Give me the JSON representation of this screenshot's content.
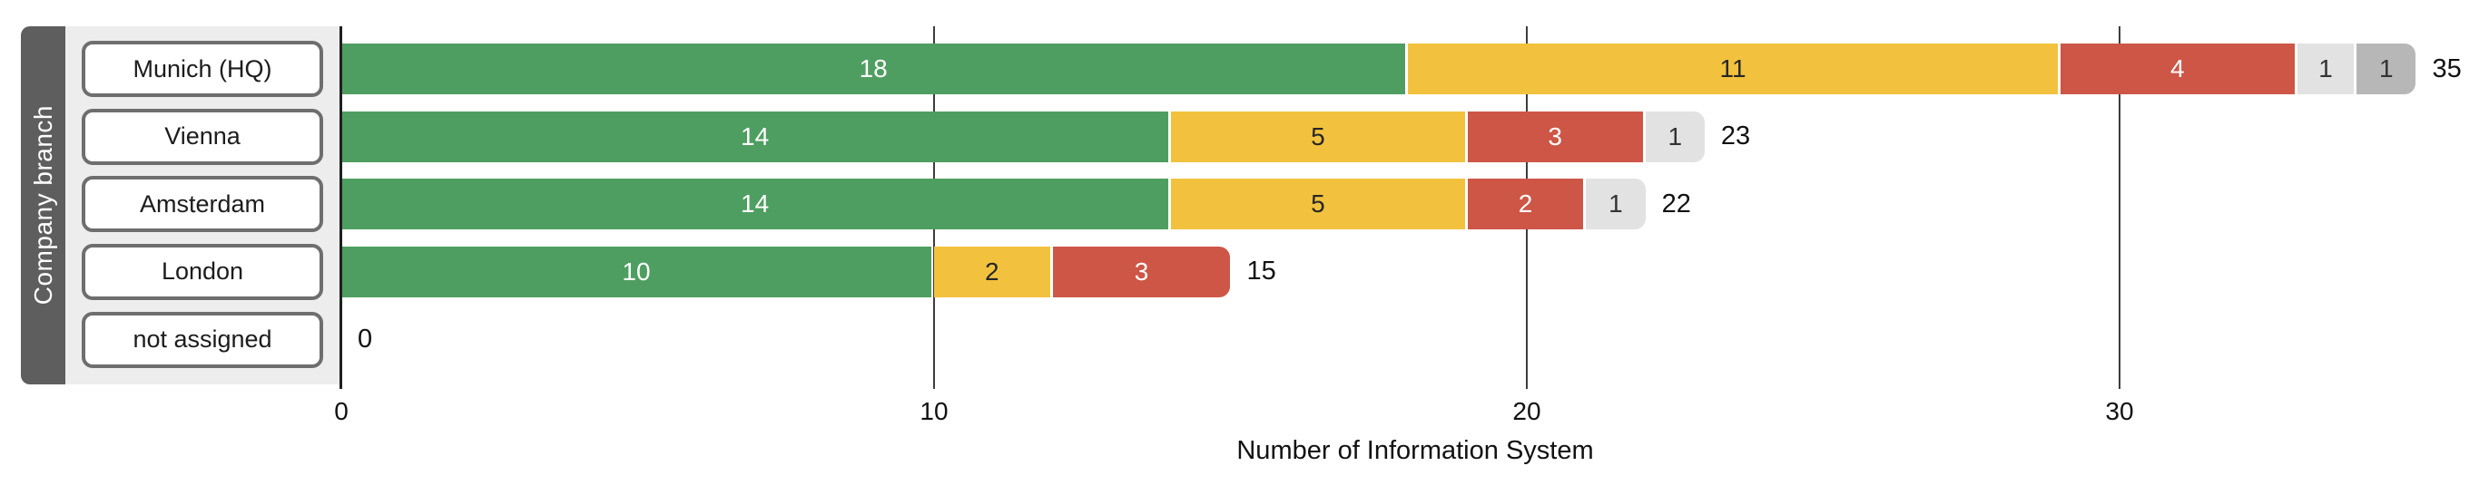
{
  "chart_data": {
    "type": "bar",
    "orientation": "horizontal",
    "stacked": true,
    "xlabel": "Number of Information System",
    "ylabel": "Company branch",
    "categories": [
      "Munich (HQ)",
      "Vienna",
      "Amsterdam",
      "London",
      "not assigned"
    ],
    "series": [
      {
        "name": "segment-green",
        "color": "#4f9e61",
        "label_color": "#ffffff",
        "values": [
          18,
          14,
          14,
          10,
          0
        ]
      },
      {
        "name": "segment-amber",
        "color": "#f2c23e",
        "label_color": "#262626",
        "values": [
          11,
          5,
          5,
          2,
          0
        ]
      },
      {
        "name": "segment-red",
        "color": "#cd5647",
        "label_color": "#ffffff",
        "values": [
          4,
          3,
          2,
          3,
          0
        ]
      },
      {
        "name": "segment-light-gray",
        "color": "#e2e2e2",
        "label_color": "#333333",
        "values": [
          1,
          1,
          1,
          0,
          0
        ]
      },
      {
        "name": "segment-gray",
        "color": "#b7b7b7",
        "label_color": "#333333",
        "values": [
          1,
          0,
          0,
          0,
          0
        ]
      }
    ],
    "totals": [
      35,
      23,
      22,
      15,
      0
    ],
    "x_ticks": [
      "0",
      "10",
      "20",
      "30"
    ],
    "xlim": [
      0,
      36.2
    ],
    "grid": "vertical-lines",
    "legend": "none"
  },
  "colors": {
    "band_background": "#5e5e5e",
    "panel_background": "#ededed",
    "button_border": "#6e6e6e",
    "axis_line": "#1f1f1f",
    "grid_line": "#3d3d3d"
  }
}
